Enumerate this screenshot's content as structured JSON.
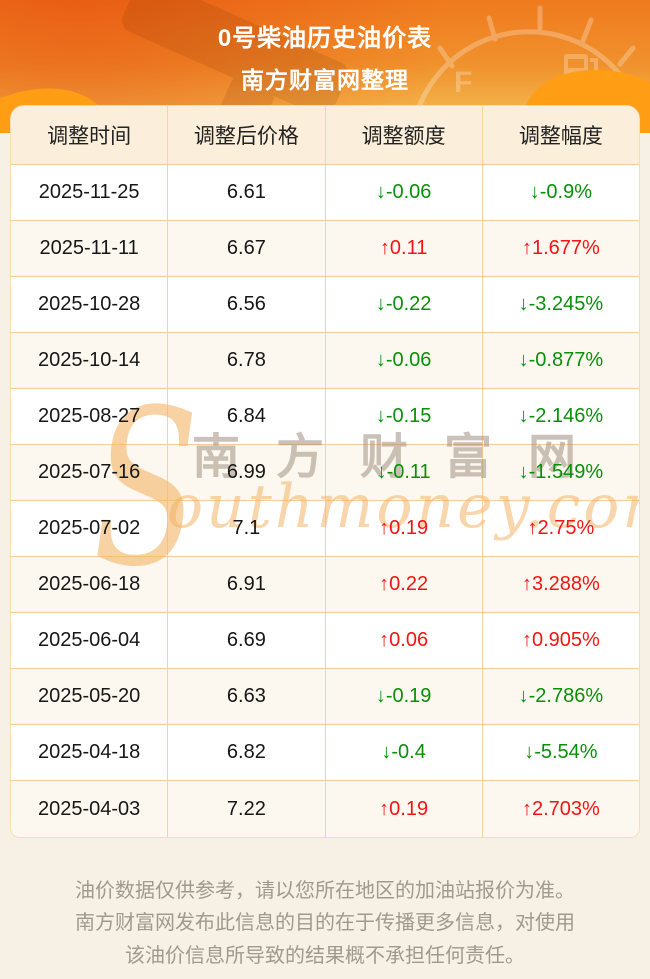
{
  "page": {
    "title_line1": "0号柴油历史油价表",
    "title_line2": "南方财富网整理"
  },
  "table": {
    "headers": [
      "调整时间",
      "调整后价格",
      "调整额度",
      "调整幅度"
    ],
    "rows": [
      {
        "date": "2025-11-25",
        "price": "6.61",
        "change": "↓-0.06",
        "percent": "↓-0.9%",
        "direction": "down"
      },
      {
        "date": "2025-11-11",
        "price": "6.67",
        "change": "↑0.11",
        "percent": "↑1.677%",
        "direction": "up"
      },
      {
        "date": "2025-10-28",
        "price": "6.56",
        "change": "↓-0.22",
        "percent": "↓-3.245%",
        "direction": "down"
      },
      {
        "date": "2025-10-14",
        "price": "6.78",
        "change": "↓-0.06",
        "percent": "↓-0.877%",
        "direction": "down"
      },
      {
        "date": "2025-08-27",
        "price": "6.84",
        "change": "↓-0.15",
        "percent": "↓-2.146%",
        "direction": "down"
      },
      {
        "date": "2025-07-16",
        "price": "6.99",
        "change": "↓-0.11",
        "percent": "↓-1.549%",
        "direction": "down"
      },
      {
        "date": "2025-07-02",
        "price": "7.1",
        "change": "↑0.19",
        "percent": "↑2.75%",
        "direction": "up"
      },
      {
        "date": "2025-06-18",
        "price": "6.91",
        "change": "↑0.22",
        "percent": "↑3.288%",
        "direction": "up"
      },
      {
        "date": "2025-06-04",
        "price": "6.69",
        "change": "↑0.06",
        "percent": "↑0.905%",
        "direction": "up"
      },
      {
        "date": "2025-05-20",
        "price": "6.63",
        "change": "↓-0.19",
        "percent": "↓-2.786%",
        "direction": "down"
      },
      {
        "date": "2025-04-18",
        "price": "6.82",
        "change": "↓-0.4",
        "percent": "↓-5.54%",
        "direction": "down"
      },
      {
        "date": "2025-04-03",
        "price": "7.22",
        "change": "↑0.19",
        "percent": "↑2.703%",
        "direction": "up"
      }
    ]
  },
  "watermark": {
    "big_s": "S",
    "cn": "南方财富网",
    "en": "outhmoney.com"
  },
  "footer": {
    "disclaimer": "油价数据仅供参考，请以您所在地区的加油站报价为准。南方财富网发布此信息的目的在于传播更多信息，对使用该油价信息所导致的结果概不承担任何责任。"
  },
  "colors": {
    "up_red": "#f41414",
    "down_green": "#0a8f0a",
    "table_border": "#f6cd96",
    "header_row_bg": "#fbeeda",
    "page_bg": "#f6f0e5",
    "header_gradient_top": "#ef7a1e",
    "header_gradient_bottom": "#f3bd58"
  }
}
